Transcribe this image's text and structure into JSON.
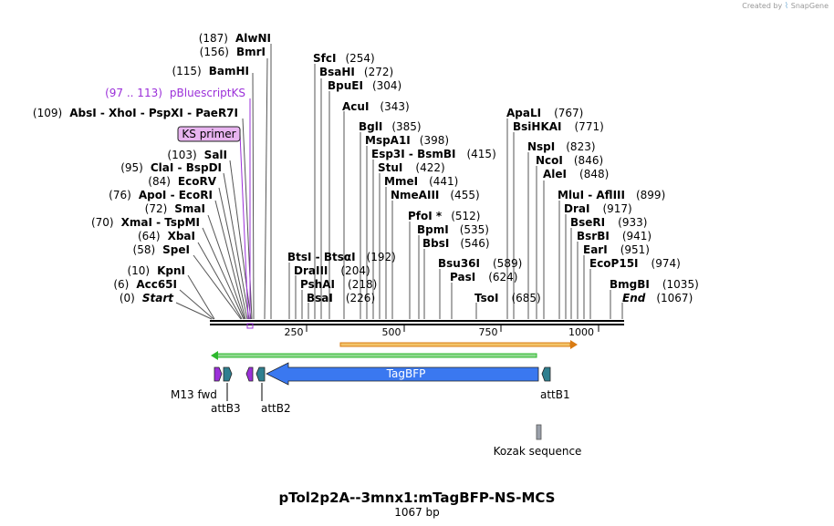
{
  "credit": {
    "prefix": "Created by",
    "brand": "SnapGene"
  },
  "title": "pTol2p2A--3mnx1:mTagBFP-NS-MCS",
  "length_label": "1067 bp",
  "colors": {
    "primer": "#9b30d9",
    "feature_label_primer": "#9b30d9",
    "ks_box_fill": "#e8b4f0",
    "tagbfp": "#3a78f0",
    "att": "#2f7f8f",
    "green_orf": "#2db82d",
    "orange_orf": "#d97b12",
    "kozak": "#9aa0aa"
  },
  "axis": {
    "ticks": [
      {
        "value": 250,
        "label": "250"
      },
      {
        "value": 500,
        "label": "500"
      },
      {
        "value": 750,
        "label": "750"
      },
      {
        "value": 1000,
        "label": "1000"
      }
    ]
  },
  "enzymes_left": [
    {
      "pos": "(187)",
      "name": "AlwNI"
    },
    {
      "pos": "(156)",
      "name": "BmrI"
    },
    {
      "pos": "(115)",
      "name": "BamHI"
    },
    {
      "pos": "(97 .. 113)",
      "name": "pBluescriptKS",
      "primer": true
    },
    {
      "pos": "(109)",
      "name": "AbsI  - XhoI  - PspXI  - PaeR7I"
    },
    {
      "name": "KS primer",
      "boxed": true
    },
    {
      "pos": "(103)",
      "name": "SalI"
    },
    {
      "pos": "(95)",
      "name": "ClaI  - BspDI"
    },
    {
      "pos": "(84)",
      "name": "EcoRV"
    },
    {
      "pos": "(76)",
      "name": "ApoI  - EcoRI"
    },
    {
      "pos": "(72)",
      "name": "SmaI"
    },
    {
      "pos": "(70)",
      "name": "XmaI  - TspMI"
    },
    {
      "pos": "(64)",
      "name": "XbaI"
    },
    {
      "pos": "(58)",
      "name": "SpeI"
    },
    {
      "pos": "(10)",
      "name": "KpnI"
    },
    {
      "pos": "(6)",
      "name": "Acc65I"
    },
    {
      "pos": "(0)",
      "name": "Start",
      "italic": true
    }
  ],
  "enzymes_mid": [
    {
      "name": "SfcI",
      "pos": "(254)"
    },
    {
      "name": "BsaHI",
      "pos": "(272)"
    },
    {
      "name": "BpuEI",
      "pos": "(304)"
    },
    {
      "name": "AcuI",
      "pos": "(343)"
    },
    {
      "name": "BglI",
      "pos": "(385)"
    },
    {
      "name": "MspA1I",
      "pos": "(398)"
    },
    {
      "name": "Esp3I  - BsmBI",
      "pos": "(415)"
    },
    {
      "name": "StuI",
      "pos": "(422)"
    },
    {
      "name": "MmeI",
      "pos": "(441)"
    },
    {
      "name": "NmeAIII",
      "pos": "(455)"
    },
    {
      "name": "PfoI *",
      "pos": "(512)"
    },
    {
      "name": "BpmI",
      "pos": "(535)"
    },
    {
      "name": "BbsI",
      "pos": "(546)"
    },
    {
      "name": "BtsI  - BtsαI",
      "pos": "(192)"
    },
    {
      "name": "DraIII",
      "pos": "(204)"
    },
    {
      "name": "PshAI",
      "pos": "(218)"
    },
    {
      "name": "BsaI",
      "pos": "(226)"
    },
    {
      "name": "Bsu36I",
      "pos": "(589)"
    },
    {
      "name": "PasI",
      "pos": "(624)"
    },
    {
      "name": "TsoI",
      "pos": "(685)"
    }
  ],
  "enzymes_right": [
    {
      "name": "ApaLI",
      "pos": "(767)"
    },
    {
      "name": "BsiHKAI",
      "pos": "(771)"
    },
    {
      "name": "NspI",
      "pos": "(823)"
    },
    {
      "name": "NcoI",
      "pos": "(846)"
    },
    {
      "name": "AleI",
      "pos": "(848)"
    },
    {
      "name": "MluI  - AflIII",
      "pos": "(899)"
    },
    {
      "name": "DraI",
      "pos": "(917)"
    },
    {
      "name": "BseRI",
      "pos": "(933)"
    },
    {
      "name": "BsrBI",
      "pos": "(941)"
    },
    {
      "name": "EarI",
      "pos": "(951)"
    },
    {
      "name": "EcoP15I",
      "pos": "(974)"
    },
    {
      "name": "BmgBI",
      "pos": "(1035)"
    },
    {
      "name": "End",
      "pos": "(1067)",
      "italic": true
    }
  ],
  "features": {
    "tagbfp": "TagBFP",
    "m13": "M13 fwd",
    "attb3": "attB3",
    "attb2": "attB2",
    "attb1": "attB1",
    "kozak": "Kozak sequence"
  }
}
